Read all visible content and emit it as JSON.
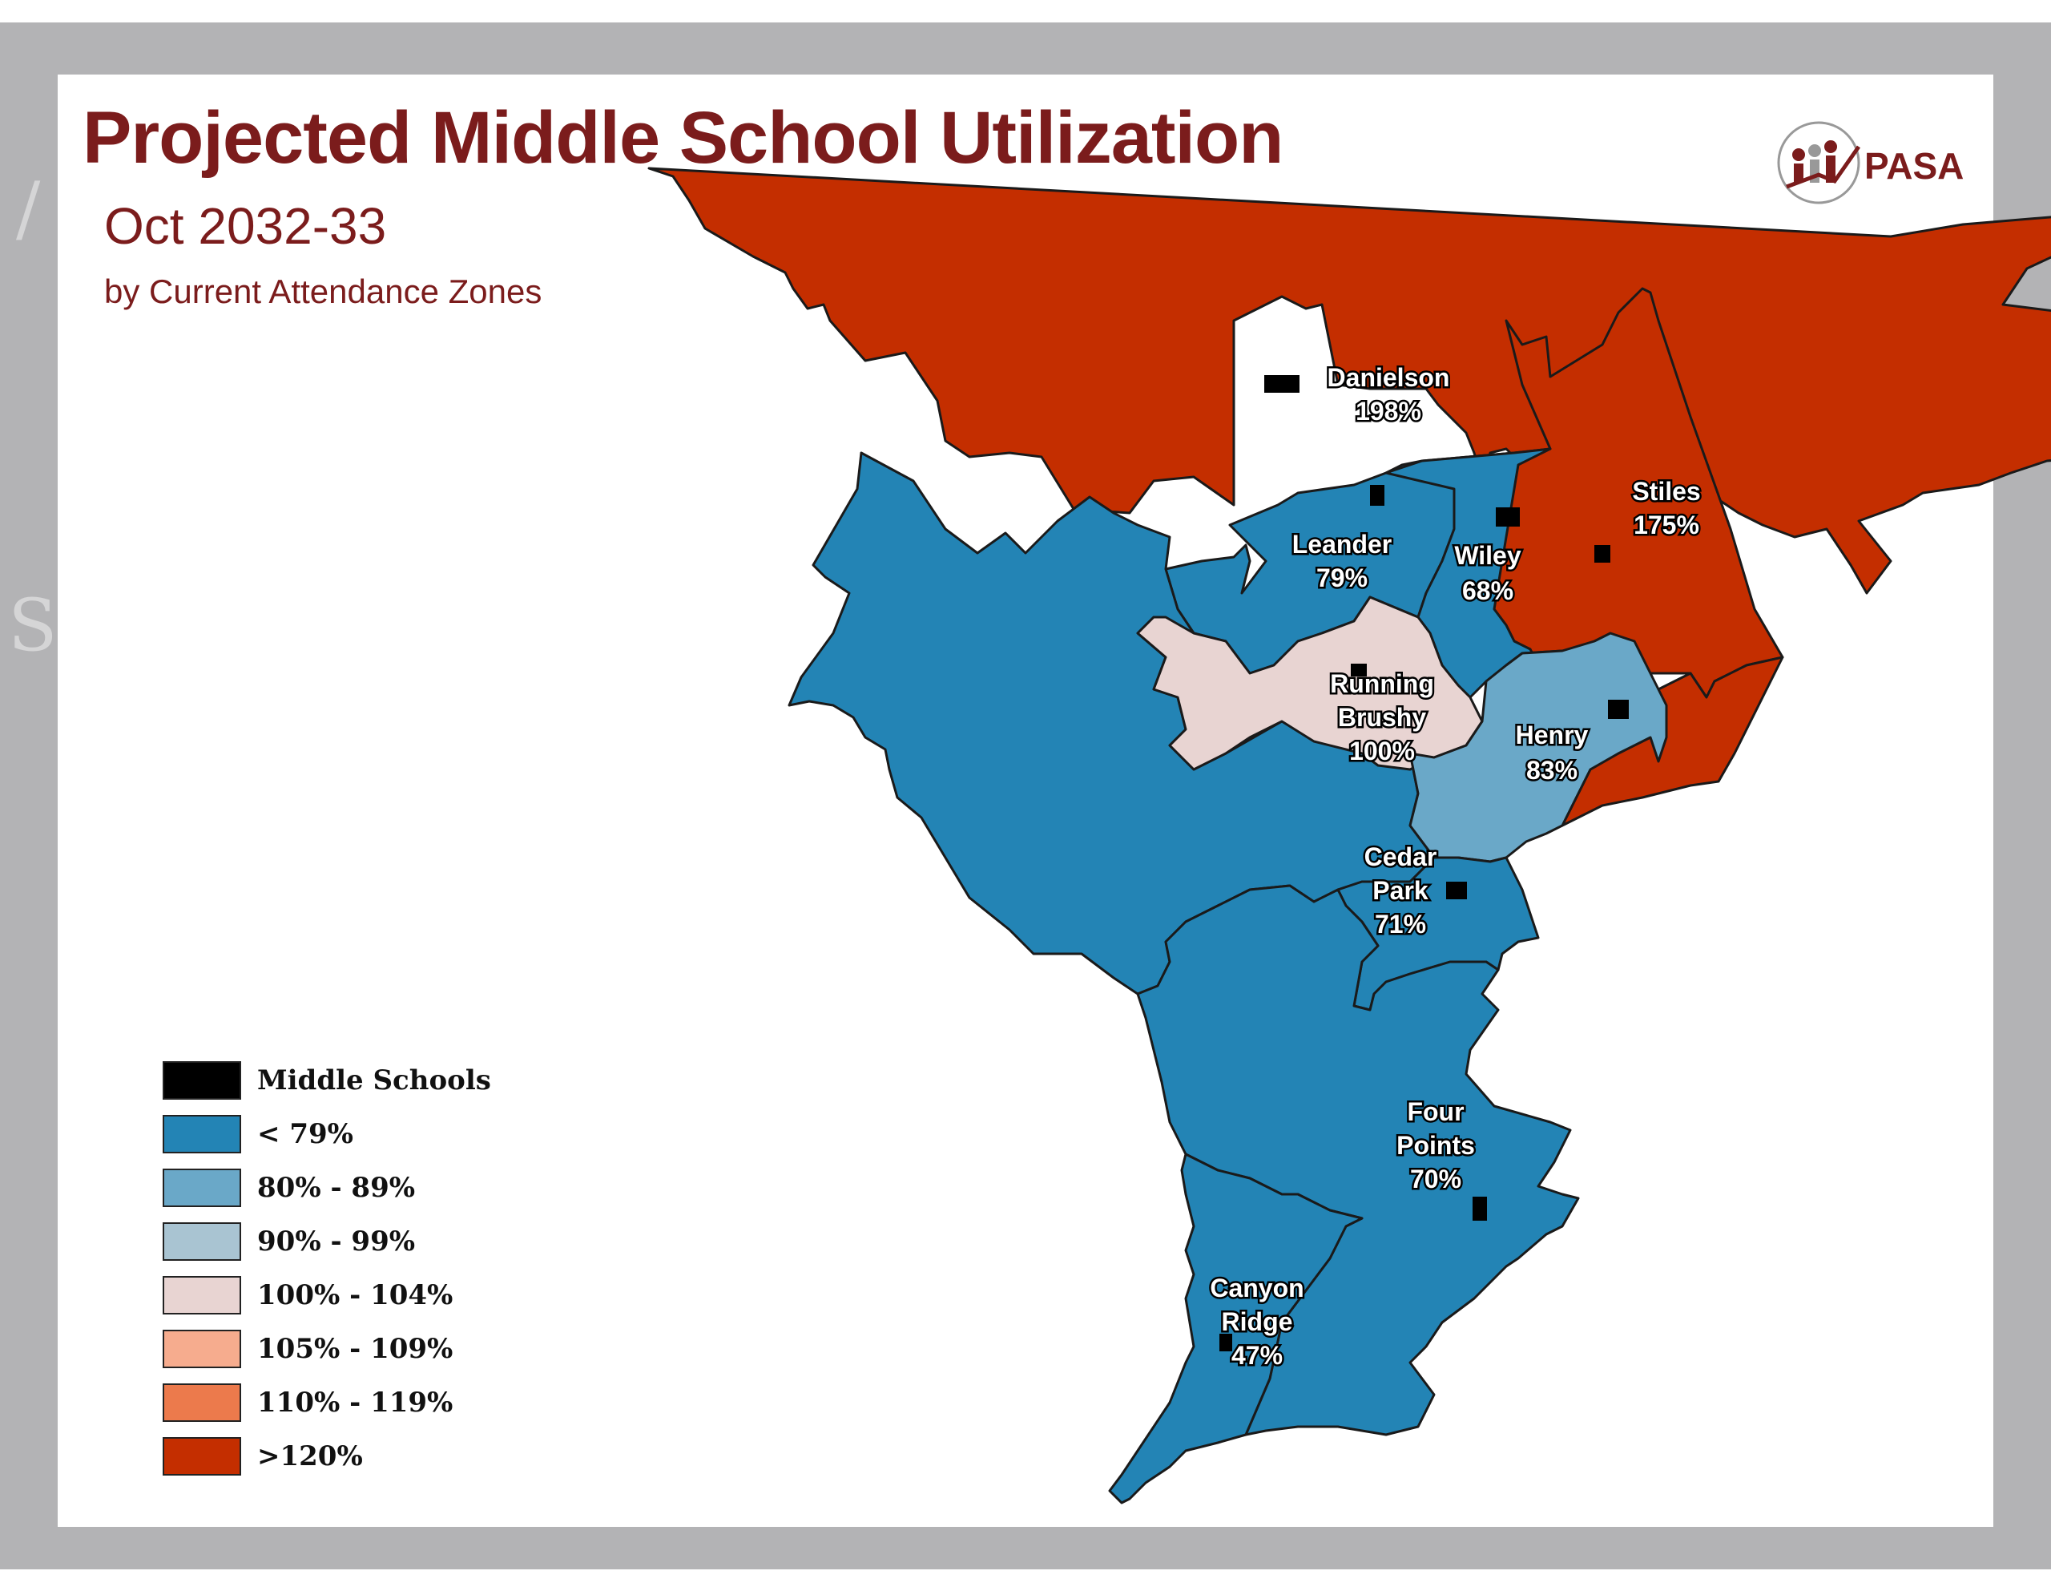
{
  "title": "Projected Middle School Utilization",
  "subtitle": "Oct 2032-33",
  "subtitle2": "by Current Attendance Zones",
  "logo_text": "PASA",
  "colors": {
    "title": "#7b1c1c",
    "over_120": "#c42e00",
    "under_79": "#2384b5",
    "80_89": "#6aa8c8",
    "90_99": "#a9c4d2",
    "100_104": "#e8d4d2",
    "105_109": "#f6ac8e",
    "110_119": "#ec7a4c",
    "school": "#000000"
  },
  "legend": [
    {
      "label": "Middle Schools",
      "color": "#000000"
    },
    {
      "label": "< 79%",
      "color": "#2384b5"
    },
    {
      "label": "80% - 89%",
      "color": "#6aa8c8"
    },
    {
      "label": "90% - 99%",
      "color": "#a9c4d2"
    },
    {
      "label": "100% - 104%",
      "color": "#e8d4d2"
    },
    {
      "label": "105% - 109%",
      "color": "#f6ac8e"
    },
    {
      "label": "110% - 119%",
      "color": "#ec7a4c"
    },
    {
      "label": ">120%",
      "color": "#c42e00"
    }
  ],
  "zones": [
    {
      "name": "Danielson",
      "utilization": "198%",
      "category": ">120%"
    },
    {
      "name": "Stiles",
      "utilization": "175%",
      "category": ">120%"
    },
    {
      "name": "Leander",
      "utilization": "79%",
      "category": "< 79%"
    },
    {
      "name": "Wiley",
      "utilization": "68%",
      "category": "< 79%"
    },
    {
      "name": "Running Brushy",
      "utilization": "100%",
      "category": "100% - 104%"
    },
    {
      "name": "Henry",
      "utilization": "83%",
      "category": "80% - 89%"
    },
    {
      "name": "Cedar Park",
      "utilization": "71%",
      "category": "< 79%"
    },
    {
      "name": "Four Points",
      "utilization": "70%",
      "category": "< 79%"
    },
    {
      "name": "Canyon Ridge",
      "utilization": "47%",
      "category": "< 79%"
    }
  ],
  "labels": {
    "danielson": [
      "Danielson",
      "198%"
    ],
    "stiles": [
      "Stiles",
      "175%"
    ],
    "leander": [
      "Leander",
      "79%"
    ],
    "wiley": [
      "Wiley",
      "68%"
    ],
    "running_brushy": [
      "Running",
      "Brushy",
      "100%"
    ],
    "henry": [
      "Henry",
      "83%"
    ],
    "cedar_park": [
      "Cedar",
      "Park",
      "71%"
    ],
    "four_points": [
      "Four",
      "Points",
      "70%"
    ],
    "canyon_ridge": [
      "Canyon",
      "Ridge",
      "47%"
    ]
  }
}
